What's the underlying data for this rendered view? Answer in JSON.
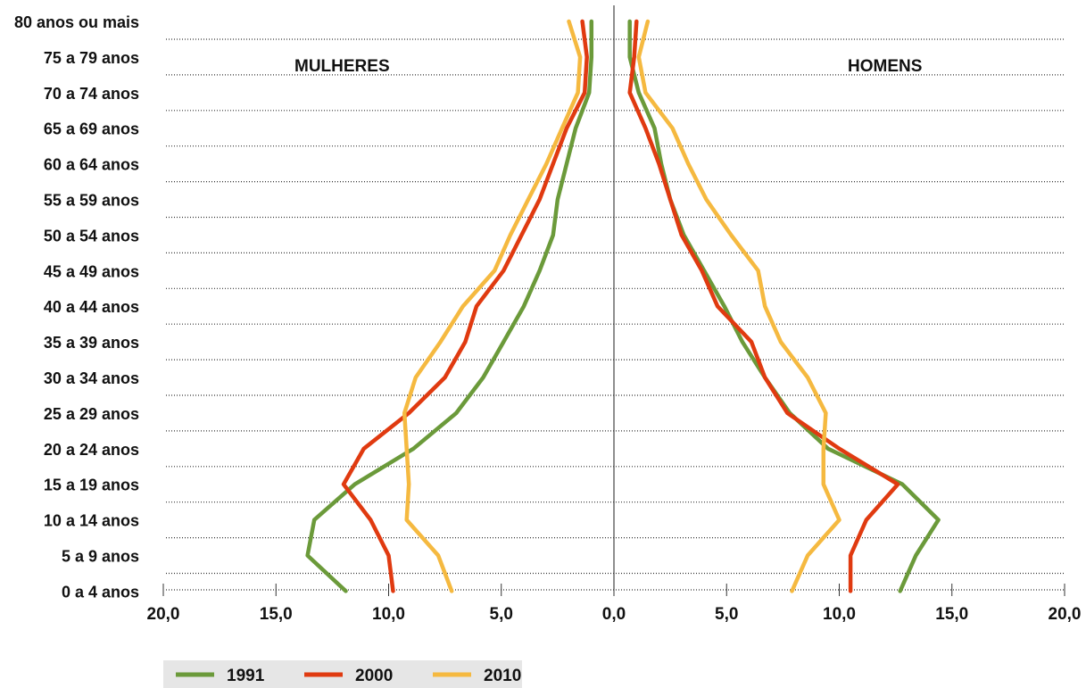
{
  "chart_data": {
    "type": "line",
    "title": "",
    "panels": {
      "left": "MULHERES",
      "right": "HOMENS"
    },
    "categories": [
      "0 a 4 anos",
      "5 a 9 anos",
      "10 a 14 anos",
      "15 a 19 anos",
      "20 a 24 anos",
      "25 a 29 anos",
      "30 a 34 anos",
      "35 a 39 anos",
      "40 a 44 anos",
      "45 a 49 anos",
      "50 a 54 anos",
      "55 a 59 anos",
      "60 a 64 anos",
      "65 a 69 anos",
      "70 a 74 anos",
      "75 a 79 anos",
      "80 anos ou mais"
    ],
    "x_ticks": [
      "20,0",
      "15,0",
      "10,0",
      "5,0",
      "0,0",
      "5,0",
      "10,0",
      "15,0",
      "20,0"
    ],
    "xlim": [
      0,
      20
    ],
    "grid": "dotted horizontal",
    "legend_position": "bottom-left",
    "series": [
      {
        "name": "1991",
        "color": "#6b9a3a",
        "women": [
          11.9,
          13.6,
          13.3,
          11.5,
          8.9,
          7.0,
          5.8,
          4.9,
          4.0,
          3.3,
          2.7,
          2.5,
          2.1,
          1.7,
          1.1,
          1.0,
          1.0
        ],
        "men": [
          12.7,
          13.4,
          14.4,
          12.8,
          9.5,
          7.8,
          6.7,
          5.7,
          4.9,
          4.0,
          3.1,
          2.5,
          2.1,
          1.8,
          1.1,
          0.7,
          0.7
        ]
      },
      {
        "name": "2000",
        "color": "#e03a10",
        "women": [
          9.8,
          10.0,
          10.8,
          12.0,
          11.1,
          9.1,
          7.5,
          6.6,
          6.1,
          4.9,
          4.1,
          3.3,
          2.7,
          2.1,
          1.3,
          1.2,
          1.4
        ],
        "men": [
          10.5,
          10.5,
          11.2,
          12.6,
          10.0,
          7.7,
          6.7,
          6.1,
          4.6,
          3.9,
          3.0,
          2.5,
          2.0,
          1.4,
          0.7,
          0.9,
          1.0
        ]
      },
      {
        "name": "2010",
        "color": "#f5b940",
        "women": [
          7.2,
          7.8,
          9.2,
          9.1,
          9.2,
          9.3,
          8.8,
          7.7,
          6.7,
          5.3,
          4.6,
          3.8,
          3.0,
          2.3,
          1.6,
          1.5,
          2.0
        ],
        "men": [
          7.9,
          8.6,
          10.0,
          9.3,
          9.3,
          9.4,
          8.6,
          7.4,
          6.7,
          6.4,
          5.2,
          4.1,
          3.3,
          2.6,
          1.4,
          1.1,
          1.5
        ]
      }
    ]
  }
}
